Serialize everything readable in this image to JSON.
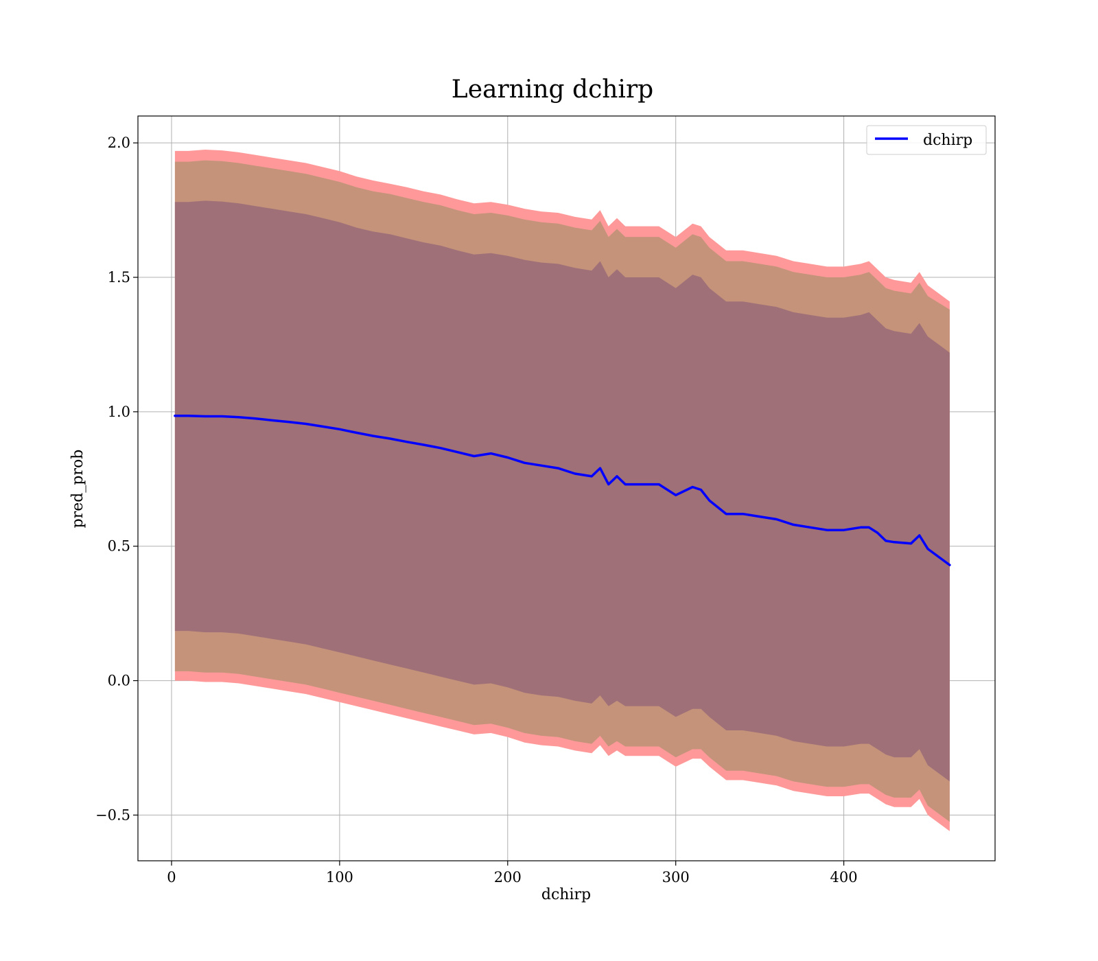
{
  "chart_data": {
    "type": "line",
    "title": "Learning dchirp",
    "xlabel": "dchirp",
    "ylabel": "pred_prob",
    "xlim": [
      -20,
      490
    ],
    "ylim": [
      -0.67,
      2.1
    ],
    "x_ticks": [
      0,
      100,
      200,
      300,
      400
    ],
    "x_tick_labels": [
      "0",
      "100",
      "200",
      "300",
      "400"
    ],
    "y_ticks": [
      -0.5,
      0.0,
      0.5,
      1.0,
      1.5,
      2.0
    ],
    "y_tick_labels": [
      "−0.5",
      "0.0",
      "0.5",
      "1.0",
      "1.5",
      "2.0"
    ],
    "grid": true,
    "legend": {
      "position": "top-right",
      "entries": [
        "dchirp"
      ]
    },
    "colors": {
      "line": "#0000ff",
      "band_outer": "#ff9999",
      "band_middle": "#c4937a",
      "band_inner": "#a07078"
    },
    "series": [
      {
        "name": "dchirp",
        "x": [
          2,
          10,
          20,
          30,
          40,
          50,
          60,
          70,
          80,
          90,
          100,
          110,
          120,
          130,
          140,
          150,
          160,
          170,
          180,
          190,
          200,
          210,
          220,
          230,
          240,
          250,
          255,
          260,
          265,
          270,
          280,
          290,
          300,
          310,
          315,
          320,
          330,
          340,
          350,
          360,
          370,
          380,
          390,
          400,
          410,
          415,
          420,
          425,
          430,
          440,
          445,
          450,
          463
        ],
        "values": [
          0.985,
          0.985,
          0.983,
          0.983,
          0.98,
          0.975,
          0.968,
          0.962,
          0.955,
          0.945,
          0.935,
          0.922,
          0.91,
          0.9,
          0.888,
          0.877,
          0.865,
          0.85,
          0.835,
          0.845,
          0.83,
          0.81,
          0.8,
          0.79,
          0.77,
          0.76,
          0.79,
          0.73,
          0.76,
          0.73,
          0.73,
          0.73,
          0.69,
          0.72,
          0.71,
          0.67,
          0.62,
          0.62,
          0.61,
          0.6,
          0.58,
          0.57,
          0.56,
          0.56,
          0.57,
          0.57,
          0.55,
          0.52,
          0.515,
          0.51,
          0.54,
          0.49,
          0.43
        ]
      }
    ],
    "bands": [
      {
        "role": "outer",
        "upper": [
          1.97,
          1.97,
          1.975,
          1.972,
          1.965,
          1.955,
          1.945,
          1.935,
          1.925,
          1.91,
          1.895,
          1.875,
          1.86,
          1.848,
          1.835,
          1.82,
          1.808,
          1.79,
          1.775,
          1.78,
          1.77,
          1.755,
          1.745,
          1.74,
          1.725,
          1.715,
          1.75,
          1.69,
          1.72,
          1.69,
          1.69,
          1.69,
          1.65,
          1.7,
          1.69,
          1.65,
          1.6,
          1.6,
          1.59,
          1.58,
          1.56,
          1.55,
          1.54,
          1.54,
          1.55,
          1.56,
          1.53,
          1.5,
          1.49,
          1.48,
          1.52,
          1.47,
          1.41
        ],
        "lower": [
          0.0,
          0.0,
          -0.005,
          -0.005,
          -0.01,
          -0.02,
          -0.03,
          -0.04,
          -0.05,
          -0.065,
          -0.08,
          -0.095,
          -0.11,
          -0.125,
          -0.14,
          -0.155,
          -0.17,
          -0.185,
          -0.2,
          -0.195,
          -0.21,
          -0.23,
          -0.24,
          -0.245,
          -0.26,
          -0.27,
          -0.24,
          -0.28,
          -0.26,
          -0.28,
          -0.28,
          -0.28,
          -0.32,
          -0.29,
          -0.29,
          -0.32,
          -0.37,
          -0.37,
          -0.38,
          -0.39,
          -0.41,
          -0.42,
          -0.43,
          -0.43,
          -0.42,
          -0.42,
          -0.44,
          -0.46,
          -0.47,
          -0.47,
          -0.44,
          -0.5,
          -0.56
        ]
      },
      {
        "role": "middle",
        "upper": [
          1.93,
          1.93,
          1.935,
          1.932,
          1.925,
          1.915,
          1.905,
          1.895,
          1.885,
          1.87,
          1.855,
          1.835,
          1.82,
          1.81,
          1.795,
          1.78,
          1.768,
          1.75,
          1.735,
          1.74,
          1.73,
          1.715,
          1.705,
          1.7,
          1.685,
          1.675,
          1.71,
          1.65,
          1.68,
          1.65,
          1.65,
          1.65,
          1.61,
          1.66,
          1.65,
          1.61,
          1.56,
          1.56,
          1.55,
          1.54,
          1.52,
          1.51,
          1.5,
          1.5,
          1.51,
          1.52,
          1.49,
          1.46,
          1.45,
          1.44,
          1.48,
          1.43,
          1.38
        ],
        "lower": [
          0.035,
          0.035,
          0.03,
          0.03,
          0.025,
          0.015,
          0.005,
          -0.005,
          -0.015,
          -0.03,
          -0.045,
          -0.06,
          -0.075,
          -0.09,
          -0.105,
          -0.12,
          -0.135,
          -0.15,
          -0.165,
          -0.16,
          -0.175,
          -0.195,
          -0.205,
          -0.21,
          -0.225,
          -0.235,
          -0.205,
          -0.245,
          -0.225,
          -0.245,
          -0.245,
          -0.245,
          -0.285,
          -0.255,
          -0.255,
          -0.285,
          -0.335,
          -0.335,
          -0.345,
          -0.355,
          -0.375,
          -0.385,
          -0.395,
          -0.395,
          -0.385,
          -0.385,
          -0.405,
          -0.425,
          -0.435,
          -0.435,
          -0.405,
          -0.465,
          -0.525
        ]
      },
      {
        "role": "inner",
        "upper": [
          1.78,
          1.78,
          1.785,
          1.782,
          1.775,
          1.765,
          1.755,
          1.745,
          1.735,
          1.72,
          1.705,
          1.685,
          1.67,
          1.66,
          1.645,
          1.63,
          1.618,
          1.6,
          1.585,
          1.59,
          1.58,
          1.565,
          1.555,
          1.55,
          1.535,
          1.525,
          1.56,
          1.5,
          1.53,
          1.5,
          1.5,
          1.5,
          1.46,
          1.51,
          1.5,
          1.46,
          1.41,
          1.41,
          1.4,
          1.39,
          1.37,
          1.36,
          1.35,
          1.35,
          1.36,
          1.37,
          1.34,
          1.31,
          1.3,
          1.29,
          1.33,
          1.28,
          1.22
        ],
        "lower": [
          0.185,
          0.185,
          0.18,
          0.18,
          0.175,
          0.165,
          0.155,
          0.145,
          0.135,
          0.12,
          0.105,
          0.09,
          0.075,
          0.06,
          0.045,
          0.03,
          0.015,
          0.0,
          -0.015,
          -0.01,
          -0.025,
          -0.045,
          -0.055,
          -0.06,
          -0.075,
          -0.085,
          -0.055,
          -0.095,
          -0.075,
          -0.095,
          -0.095,
          -0.095,
          -0.135,
          -0.105,
          -0.105,
          -0.135,
          -0.185,
          -0.185,
          -0.195,
          -0.205,
          -0.225,
          -0.235,
          -0.245,
          -0.245,
          -0.235,
          -0.235,
          -0.255,
          -0.275,
          -0.285,
          -0.285,
          -0.255,
          -0.315,
          -0.375
        ]
      }
    ]
  }
}
